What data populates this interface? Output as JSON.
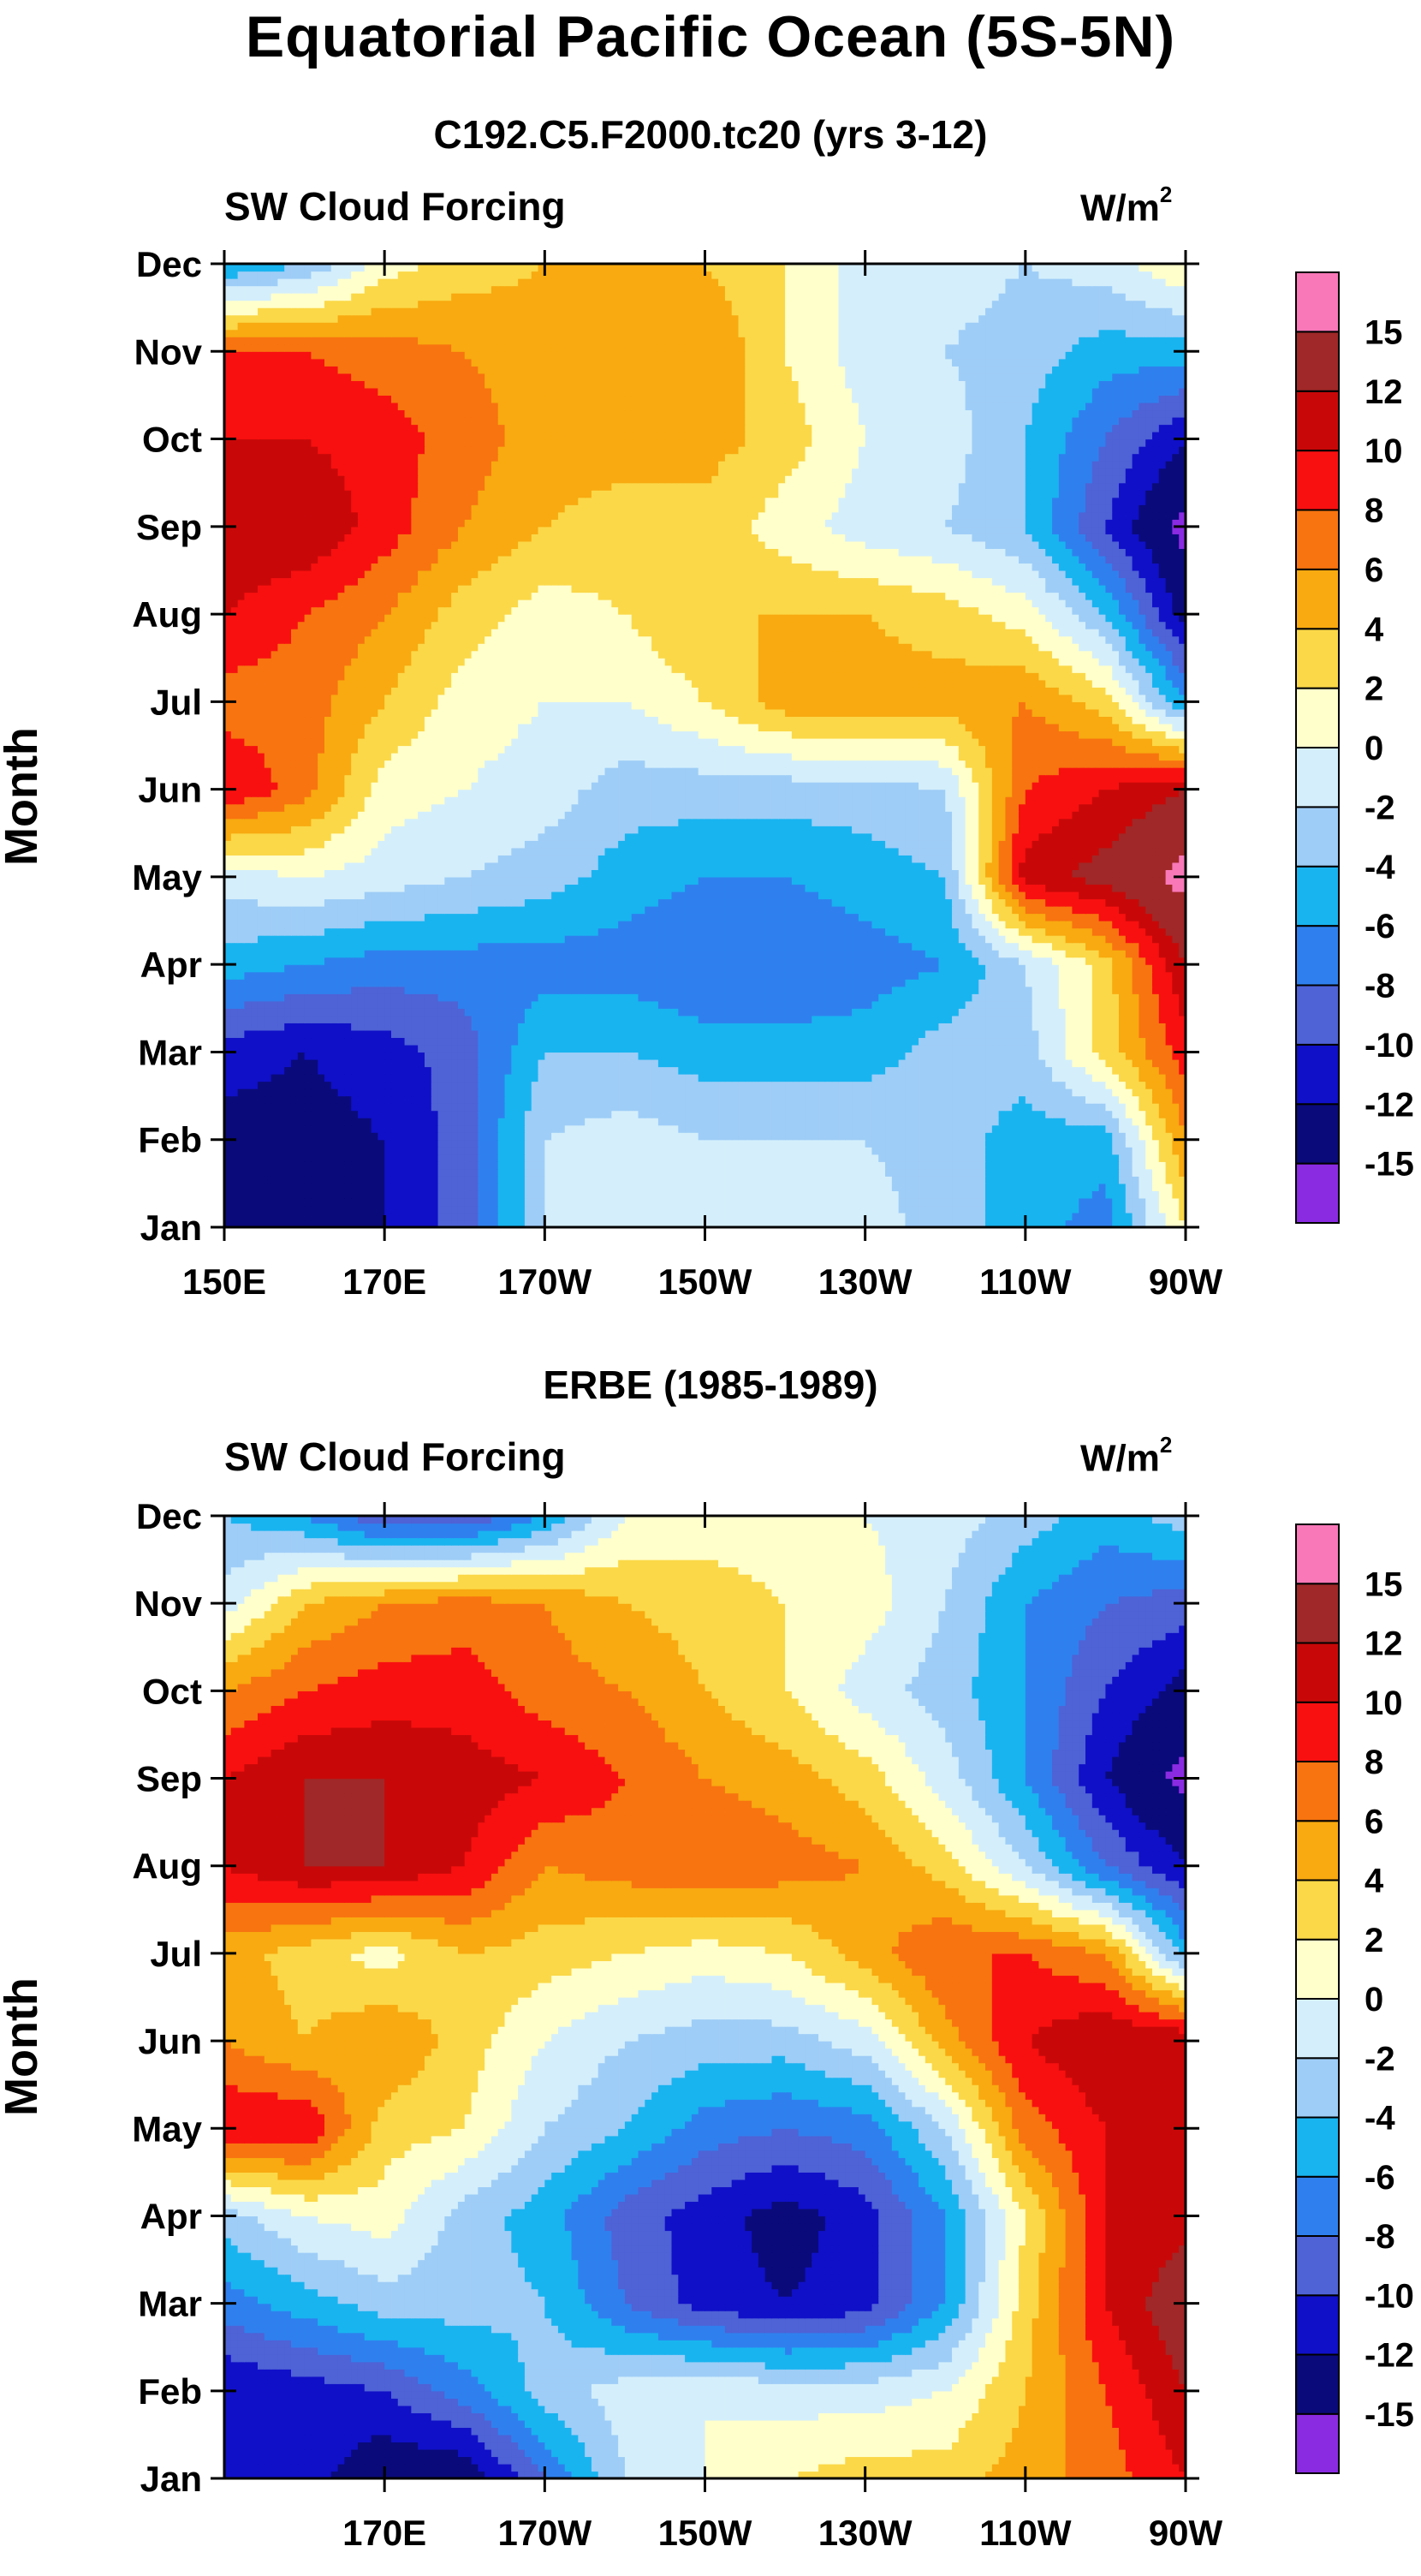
{
  "figure": {
    "title": "Equatorial Pacific Ocean (5S-5N)"
  },
  "colors": {
    "palette": [
      "#8a2be2",
      "#0a0a7a",
      "#1010c8",
      "#4f62d6",
      "#2f80ee",
      "#18b4f0",
      "#9ecdf7",
      "#d4eefb",
      "#ffffcc",
      "#fbd848",
      "#f8aa10",
      "#f87410",
      "#f81010",
      "#c80808",
      "#a02828",
      "#f878b8"
    ],
    "axis": "#000000",
    "background": "#ffffff"
  },
  "chart_data": [
    {
      "type": "heatmap",
      "subtitle": "C192.C5.F2000.tc20 (yrs 3-12)",
      "left_label": "SW Cloud Forcing",
      "right_label_base": "W/m",
      "right_label_exp": "2",
      "ylabel": "Month",
      "x_tick_labels": [
        "150E",
        "170E",
        "170W",
        "150W",
        "130W",
        "110W",
        "90W"
      ],
      "x_tick_values": [
        150,
        170,
        190,
        210,
        230,
        250,
        270
      ],
      "xlim": [
        150,
        270
      ],
      "y_tick_labels": [
        "Jan",
        "Feb",
        "Mar",
        "Apr",
        "May",
        "Jun",
        "Jul",
        "Aug",
        "Sep",
        "Oct",
        "Nov",
        "Dec"
      ],
      "colorbar_levels": [
        "15",
        "12",
        "10",
        "8",
        "6",
        "4",
        "2",
        "0",
        "-2",
        "-4",
        "-6",
        "-8",
        "-10",
        "-12",
        "-15"
      ],
      "x": [
        150,
        160,
        170,
        180,
        190,
        200,
        210,
        220,
        230,
        240,
        250,
        260,
        270
      ],
      "grid_rows": {
        "Jan": [
          -13,
          -13,
          -12,
          -9,
          -2,
          -1,
          -1,
          -1,
          -1,
          -3,
          -5,
          -7,
          2
        ],
        "Feb": [
          -13,
          -13,
          -12,
          -9,
          -2,
          -1,
          -2,
          -2,
          -2,
          -3,
          -5,
          -5,
          6
        ],
        "Mar": [
          -11,
          -12,
          -11,
          -9,
          -4,
          -4,
          -5,
          -5,
          -5,
          -3,
          -3,
          3,
          9
        ],
        "Apr": [
          -5,
          -6,
          -7,
          -7,
          -7,
          -7,
          -8,
          -8,
          -7,
          -6,
          -2,
          3,
          12
        ],
        "May": [
          -1,
          0,
          -1,
          -2,
          -3,
          -5,
          -6,
          -6,
          -5,
          -4,
          11,
          13,
          16
        ],
        "Jun": [
          10,
          7,
          1,
          0,
          -1,
          -3,
          -3,
          -3,
          -3,
          -2,
          8,
          10,
          12
        ],
        "Jul": [
          7,
          7,
          4,
          1,
          0,
          0,
          2,
          5,
          5,
          5,
          6,
          3,
          -6
        ],
        "Aug": [
          10,
          8,
          6,
          3,
          1,
          2,
          4,
          4,
          4,
          3,
          1,
          -4,
          -13
        ],
        "Sep": [
          12,
          12,
          9,
          6,
          4,
          3,
          3,
          1,
          -1,
          -2,
          -4,
          -10,
          -16
        ],
        "Oct": [
          10,
          10,
          9,
          7,
          5,
          5,
          5,
          3,
          0,
          -1,
          -4,
          -8,
          -12
        ],
        "Nov": [
          8,
          8,
          7,
          6,
          5,
          5,
          6,
          2,
          -1,
          -2,
          -3,
          -5,
          -5
        ],
        "Dec": [
          -6,
          -4,
          1,
          3,
          4,
          5,
          4,
          2,
          -1,
          -1,
          -2,
          -1,
          2
        ]
      }
    },
    {
      "type": "heatmap",
      "subtitle": "ERBE (1985-1989)",
      "left_label": "SW Cloud Forcing",
      "right_label_base": "W/m",
      "right_label_exp": "2",
      "ylabel": "Month",
      "x_tick_labels": [
        "170E",
        "170W",
        "150W",
        "130W",
        "110W",
        "90W"
      ],
      "x_tick_values": [
        170,
        190,
        210,
        230,
        250,
        270
      ],
      "xlim": [
        150,
        270
      ],
      "y_tick_labels": [
        "Jan",
        "Feb",
        "Mar",
        "Apr",
        "May",
        "Jun",
        "Jul",
        "Aug",
        "Sep",
        "Oct",
        "Nov",
        "Dec"
      ],
      "colorbar_levels": [
        "15",
        "12",
        "10",
        "8",
        "6",
        "4",
        "2",
        "0",
        "-2",
        "-4",
        "-6",
        "-8",
        "-10",
        "-12",
        "-15"
      ],
      "x": [
        150,
        160,
        170,
        180,
        190,
        200,
        210,
        220,
        230,
        240,
        250,
        260,
        270
      ],
      "grid_rows": {
        "Jan": [
          -10,
          -11,
          -14,
          -14,
          -8,
          -2,
          0,
          2,
          3,
          3,
          5,
          7,
          10
        ],
        "Feb": [
          -12,
          -11,
          -10,
          -7,
          -3,
          -1,
          0,
          -1,
          -1,
          0,
          4,
          8,
          12
        ],
        "Mar": [
          -7,
          -5,
          -3,
          -3,
          -4,
          -8,
          -11,
          -12,
          -11,
          -6,
          3,
          10,
          14
        ],
        "Apr": [
          -3,
          0,
          1,
          -3,
          -5,
          -9,
          -11,
          -13,
          -11,
          -6,
          2,
          10,
          11
        ],
        "May": [
          10,
          10,
          3,
          2,
          -2,
          -4,
          -7,
          -8,
          -7,
          -2,
          7,
          10,
          12
        ],
        "Jun": [
          6,
          4,
          6,
          3,
          0,
          -2,
          -3,
          -3,
          -1,
          5,
          10,
          12,
          12
        ],
        "Jul": [
          5,
          3,
          1,
          4,
          3,
          2,
          1,
          2,
          5,
          8,
          8,
          6,
          -5
        ],
        "Aug": [
          10,
          12,
          12,
          10,
          6,
          7,
          8,
          7,
          6,
          3,
          -2,
          -8,
          -12
        ],
        "Sep": [
          10,
          12,
          12,
          11,
          10,
          8,
          6,
          5,
          3,
          -1,
          -6,
          -12,
          -16
        ],
        "Oct": [
          6,
          8,
          9,
          9,
          7,
          6,
          4,
          2,
          -1,
          -3,
          -6,
          -10,
          -13
        ],
        "Nov": [
          -1,
          4,
          6,
          7,
          6,
          4,
          3,
          2,
          1,
          -2,
          -6,
          -8,
          -9
        ],
        "Dec": [
          -4,
          -6,
          -10,
          -10,
          -6,
          0,
          1,
          1,
          0,
          -1,
          -3,
          -5,
          -3
        ]
      }
    }
  ]
}
